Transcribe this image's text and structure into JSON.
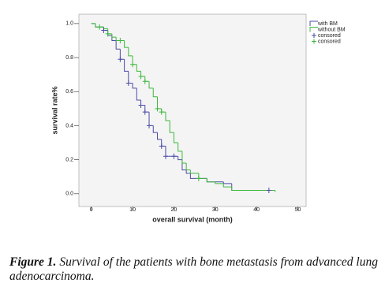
{
  "chart_data": {
    "type": "line",
    "step": "post",
    "xlabel": "overall survival  (month)",
    "ylabel": "survival rate%",
    "xlim": [
      -3,
      52
    ],
    "ylim": [
      -0.075,
      1.055
    ],
    "xticks": [
      0,
      10,
      20,
      30,
      40,
      50
    ],
    "yticks": [
      {
        "value": 0,
        "label": "0.0"
      },
      {
        "value": 0.2,
        "label": "0.2"
      },
      {
        "value": 0.4,
        "label": "0.4"
      },
      {
        "value": 0.6,
        "label": "0.6"
      },
      {
        "value": 0.8,
        "label": "0.8"
      },
      {
        "value": 1.0,
        "label": "1.0"
      }
    ],
    "legend": "right-top",
    "series": [
      {
        "name": "with BM",
        "color": "#4b4ba8",
        "x": [
          0,
          1,
          3,
          4,
          5,
          6,
          7,
          8,
          9,
          10,
          11,
          12,
          13,
          14,
          15,
          16,
          17,
          18,
          21,
          22,
          23,
          24,
          28,
          32,
          34,
          43
        ],
        "values": [
          1.0,
          0.98,
          0.96,
          0.93,
          0.9,
          0.85,
          0.79,
          0.72,
          0.65,
          0.62,
          0.55,
          0.52,
          0.48,
          0.4,
          0.36,
          0.32,
          0.28,
          0.22,
          0.2,
          0.14,
          0.12,
          0.09,
          0.07,
          0.06,
          0.02,
          0.02
        ]
      },
      {
        "name": "without BM",
        "color": "#3db83d",
        "x": [
          0,
          1,
          3,
          4,
          5,
          6,
          8,
          9,
          10,
          11,
          12,
          13,
          14,
          15,
          16,
          17,
          18,
          19,
          20,
          21,
          22,
          23,
          24,
          26,
          28,
          30,
          32,
          34,
          44.5
        ],
        "values": [
          1.0,
          0.98,
          0.97,
          0.94,
          0.92,
          0.9,
          0.86,
          0.81,
          0.76,
          0.72,
          0.69,
          0.66,
          0.62,
          0.57,
          0.5,
          0.48,
          0.43,
          0.36,
          0.3,
          0.25,
          0.18,
          0.14,
          0.12,
          0.09,
          0.07,
          0.06,
          0.04,
          0.02,
          0.01
        ]
      },
      {
        "name": "consored",
        "color": "#4b4ba8",
        "marker": "+",
        "x": [
          3,
          7,
          9,
          12,
          13,
          14,
          17,
          18,
          20,
          43
        ],
        "values": [
          0.96,
          0.79,
          0.65,
          0.52,
          0.48,
          0.4,
          0.28,
          0.22,
          0.22,
          0.02
        ]
      },
      {
        "name": "consored",
        "color": "#3db83d",
        "marker": "+",
        "x": [
          2,
          4,
          7,
          10,
          12,
          13,
          16,
          17,
          26
        ],
        "values": [
          0.98,
          0.94,
          0.9,
          0.76,
          0.69,
          0.66,
          0.5,
          0.48,
          0.09
        ]
      }
    ]
  },
  "caption": {
    "label": "Figure 1.",
    "text": "Survival of the patients with bone metastasis from advanced lung adenocarcinoma."
  }
}
